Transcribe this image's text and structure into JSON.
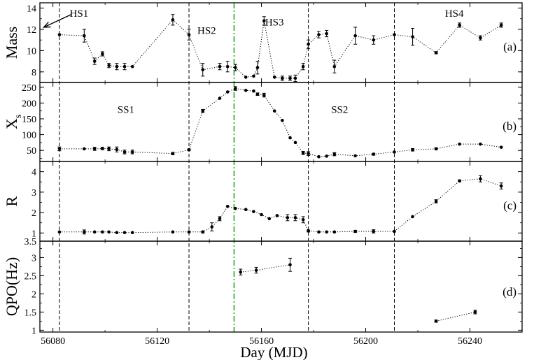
{
  "chart_data": {
    "type": "line",
    "xlabel": "Day (MJD)",
    "xlim": [
      56075,
      56260
    ],
    "xticks": [
      56080,
      56120,
      56160,
      56200,
      56240
    ],
    "xtick_labels": [
      "56080",
      "56120",
      "56160",
      "56200",
      "56240"
    ],
    "vlines": [
      {
        "x": 56082.5,
        "style": "dashed",
        "color": "#000000"
      },
      {
        "x": 56132.2,
        "style": "dashed",
        "color": "#000000"
      },
      {
        "x": 56149.5,
        "style": "dashdot",
        "color": "#22aa22"
      },
      {
        "x": 56178.0,
        "style": "dashed",
        "color": "#000000"
      },
      {
        "x": 56211.0,
        "style": "dashed",
        "color": "#000000"
      }
    ],
    "panels": [
      {
        "id": "a",
        "ylabel": "Mass",
        "panel_label": "(a)",
        "ylim": [
          7.0,
          14.5
        ],
        "yticks": [
          8,
          10,
          12,
          14
        ],
        "ytick_labels": [
          "8",
          "10",
          "12",
          "14"
        ],
        "annotations": [
          {
            "text": "HS1",
            "x": 56090,
            "y": 13.5
          },
          {
            "text": "HS2",
            "x": 56139,
            "y": 11.9
          },
          {
            "text": "HS3",
            "x": 56165,
            "y": 12.7
          },
          {
            "text": "HS4",
            "x": 56234,
            "y": 13.5
          }
        ],
        "arrow": {
          "from_x": 56087,
          "from_y": 13.4,
          "to_x": 56076.5,
          "to_y": 12.2
        },
        "series": [
          {
            "name": "Mass",
            "x": [
              56082.5,
              56092,
              56096,
              56099,
              56101.5,
              56104.5,
              56107.5,
              56110.5,
              56126,
              56132.2,
              56137.5,
              56144,
              56147,
              56150,
              56154,
              56157,
              56158.5,
              56161,
              56165,
              56168,
              56171,
              56173,
              56176,
              56178,
              56182,
              56185,
              56188,
              56196,
              56203,
              56211,
              56218,
              56227,
              56236,
              56244,
              56252
            ],
            "y": [
              11.5,
              11.4,
              9.0,
              9.7,
              8.6,
              8.5,
              8.5,
              8.5,
              12.9,
              11.5,
              8.2,
              8.5,
              8.5,
              8.4,
              7.5,
              7.6,
              8.4,
              12.8,
              7.5,
              7.4,
              7.4,
              7.4,
              8.5,
              10.6,
              11.5,
              11.6,
              8.5,
              11.4,
              11.0,
              11.5,
              11.3,
              9.8,
              12.4,
              11.2,
              12.4
            ],
            "err": [
              0.0,
              0.6,
              0.3,
              0.2,
              0.2,
              0.3,
              0.3,
              0.0,
              0.5,
              0.5,
              0.6,
              0.3,
              0.5,
              0.3,
              0.0,
              0.0,
              0.6,
              0.4,
              0.0,
              0.2,
              0.2,
              0.3,
              0.3,
              0.4,
              0.3,
              0.3,
              0.6,
              0.8,
              0.4,
              0.0,
              0.8,
              0.1,
              0.2,
              0.2,
              0.2
            ]
          }
        ]
      },
      {
        "id": "b",
        "ylabel": "X",
        "ylabel_sub": "s",
        "panel_label": "(b)",
        "ylim": [
          15,
          265
        ],
        "yticks": [
          50,
          100,
          150,
          200,
          250
        ],
        "ytick_labels": [
          "50",
          "100",
          "150",
          "200",
          "250"
        ],
        "annotations": [
          {
            "text": "SS1",
            "x": 56108,
            "y": 180
          },
          {
            "text": "SS2",
            "x": 56190,
            "y": 180
          }
        ],
        "series": [
          {
            "name": "Xs",
            "x": [
              56082.5,
              56092,
              56096,
              56099,
              56101.5,
              56104.5,
              56107.5,
              56110.5,
              56126,
              56132.2,
              56137.5,
              56144,
              56147,
              56150,
              56154,
              56157,
              56158.5,
              56161,
              56165,
              56168,
              56171,
              56173,
              56176,
              56178,
              56182,
              56185,
              56188,
              56196,
              56203,
              56211,
              56218,
              56227,
              56236,
              56244,
              56252
            ],
            "y": [
              55,
              55,
              55,
              56,
              55,
              53,
              45,
              45,
              40,
              52,
              175,
              215,
              235,
              246,
              240,
              238,
              228,
              225,
              175,
              145,
              90,
              75,
              42,
              40,
              30,
              32,
              38,
              33,
              38,
              45,
              52,
              55,
              70,
              70,
              60
            ],
            "err": [
              6,
              0,
              5,
              4,
              6,
              8,
              6,
              6,
              4,
              3,
              5,
              0,
              0,
              6,
              0,
              0,
              4,
              6,
              0,
              0,
              0,
              0,
              5,
              6,
              0,
              0,
              5,
              0,
              3,
              0,
              4,
              3,
              0,
              0,
              0
            ]
          }
        ]
      },
      {
        "id": "c",
        "ylabel": "R",
        "panel_label": "(c)",
        "ylim": [
          0.6,
          4.5
        ],
        "yticks": [
          1,
          2,
          3,
          4
        ],
        "ytick_labels": [
          "1",
          "2",
          "3",
          "4"
        ],
        "annotations": [],
        "series": [
          {
            "name": "R",
            "x": [
              56082.5,
              56092,
              56096,
              56099,
              56101.5,
              56104.5,
              56107.5,
              56110.5,
              56126,
              56132.2,
              56137.5,
              56141,
              56144,
              56147,
              56150,
              56154,
              56157,
              56160,
              56163,
              56166,
              56170,
              56173,
              56176,
              56178,
              56182,
              56185,
              56188,
              56196,
              56203,
              56211,
              56218,
              56227,
              56236,
              56244,
              56252
            ],
            "y": [
              1.05,
              1.05,
              1.05,
              1.05,
              1.05,
              1.02,
              1.02,
              1.02,
              1.05,
              1.05,
              1.05,
              1.3,
              1.7,
              2.3,
              2.2,
              2.15,
              2.05,
              1.9,
              1.7,
              1.85,
              1.75,
              1.75,
              1.65,
              1.1,
              1.05,
              1.05,
              1.05,
              1.08,
              1.08,
              1.08,
              1.8,
              2.55,
              3.55,
              3.65,
              3.3
            ],
            "err": [
              0.0,
              0.1,
              0.0,
              0.0,
              0.0,
              0.0,
              0.0,
              0.0,
              0.0,
              0.0,
              0.05,
              0.2,
              0.1,
              0.0,
              0.0,
              0.0,
              0.0,
              0.0,
              0.0,
              0.0,
              0.15,
              0.15,
              0.15,
              0.05,
              0.0,
              0.0,
              0.0,
              0.05,
              0.08,
              0.0,
              0.0,
              0.08,
              0.05,
              0.15,
              0.15
            ]
          }
        ]
      },
      {
        "id": "d",
        "ylabel": "QPO(Hz)",
        "panel_label": "(d)",
        "ylim": [
          0.95,
          3.45
        ],
        "yticks": [
          1,
          1.5,
          2,
          2.5,
          3
        ],
        "ytick_labels": [
          "1",
          "1.5",
          "2",
          "2.5",
          "3"
        ],
        "top_tick_label": "3.5",
        "annotations": [],
        "series": [
          {
            "name": "QPO-1",
            "x": [
              56152,
              56158,
              56171
            ],
            "y": [
              2.6,
              2.65,
              2.8
            ],
            "err": [
              0.08,
              0.08,
              0.18
            ]
          },
          {
            "name": "QPO-2",
            "x": [
              56227,
              56242
            ],
            "y": [
              1.25,
              1.5
            ],
            "err": [
              0.03,
              0.05
            ]
          }
        ]
      }
    ]
  }
}
